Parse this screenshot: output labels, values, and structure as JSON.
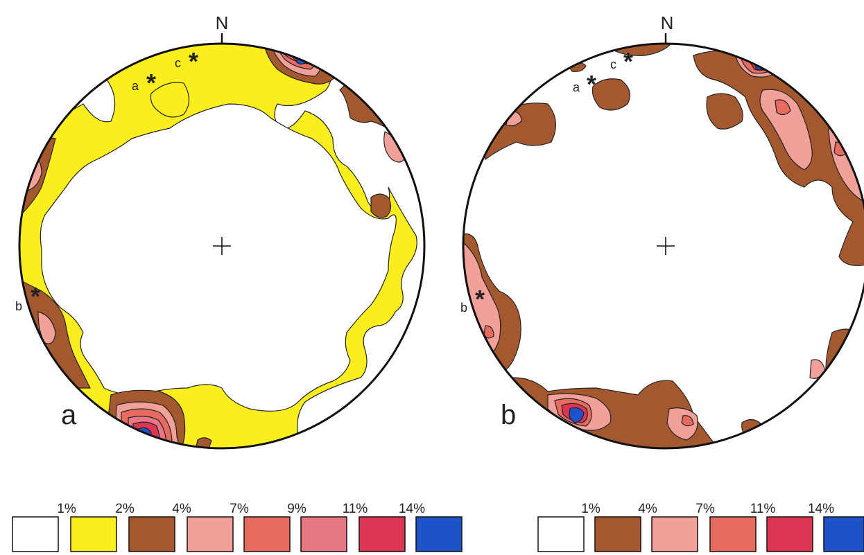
{
  "diagrams": [
    {
      "panel_label": "a",
      "north_label": "N",
      "points": [
        {
          "label": "a"
        },
        {
          "label": "b"
        },
        {
          "label": "c"
        }
      ],
      "legend": {
        "thresholds": [
          "1%",
          "2%",
          "4%",
          "7%",
          "9%",
          "11%",
          "14%"
        ],
        "colors": [
          "#ffffff",
          "#fbee1f",
          "#a3582f",
          "#f2a09a",
          "#e86b62",
          "#e77782",
          "#dc3652",
          "#1f52c9"
        ]
      }
    },
    {
      "panel_label": "b",
      "north_label": "N",
      "points": [
        {
          "label": "a"
        },
        {
          "label": "b"
        },
        {
          "label": "c"
        }
      ],
      "legend": {
        "thresholds": [
          "1%",
          "4%",
          "7%",
          "11%",
          "14%"
        ],
        "colors": [
          "#ffffff",
          "#a3582f",
          "#f2a09a",
          "#e86b62",
          "#dc3652",
          "#1f52c9"
        ]
      }
    }
  ]
}
